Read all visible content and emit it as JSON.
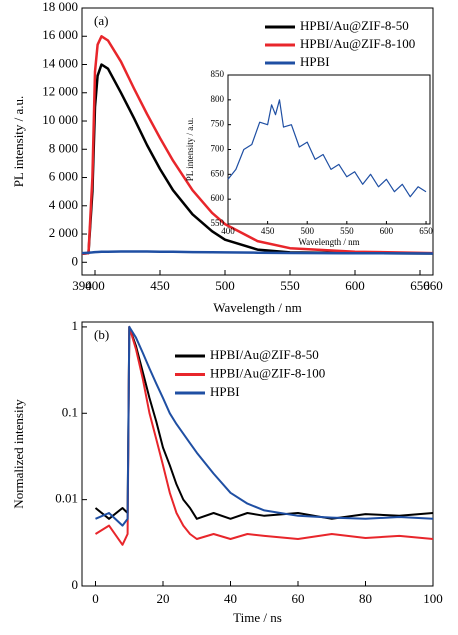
{
  "chart_data": [
    {
      "type": "line",
      "label": "(a)",
      "xlabel": "Wavelength / nm",
      "ylabel": "PL intensity / a.u.",
      "x": [
        390,
        395,
        398,
        400,
        402,
        405,
        410,
        420,
        430,
        440,
        450,
        460,
        475,
        490,
        500,
        525,
        550,
        600,
        660
      ],
      "series": [
        {
          "name": "HPBI/Au@ZIF-8-50",
          "color": "#000000",
          "values": [
            600,
            650,
            5000,
            11000,
            13200,
            14000,
            13700,
            12000,
            10200,
            8300,
            6600,
            5100,
            3400,
            2200,
            1600,
            900,
            700,
            650,
            620
          ]
        },
        {
          "name": "HPBI/Au@ZIF-8-100",
          "color": "#e8262b",
          "values": [
            600,
            650,
            6000,
            13500,
            15400,
            16000,
            15700,
            14200,
            12300,
            10500,
            8800,
            7200,
            5100,
            3500,
            2700,
            1500,
            1000,
            750,
            650
          ]
        },
        {
          "name": "HPBI",
          "color": "#1f4fa3",
          "values": [
            650,
            680,
            700,
            720,
            730,
            740,
            750,
            760,
            760,
            760,
            750,
            740,
            720,
            710,
            700,
            680,
            660,
            640,
            620
          ]
        }
      ],
      "xlim": [
        390,
        660
      ],
      "xticks": [
        390,
        400,
        450,
        500,
        550,
        600,
        650,
        660
      ],
      "ylim": [
        -900,
        18000
      ],
      "yticks": [
        0,
        {
          "value": 2000,
          "label": "2 000"
        },
        {
          "value": 4000,
          "label": "4 000"
        },
        {
          "value": 6000,
          "label": "6 000"
        },
        {
          "value": 8000,
          "label": "8 000"
        },
        {
          "value": 10000,
          "label": "10 000"
        },
        {
          "value": 12000,
          "label": "12 000"
        },
        {
          "value": 14000,
          "label": "14 000"
        },
        {
          "value": 16000,
          "label": "16 000"
        },
        {
          "value": 18000,
          "label": "18 000"
        }
      ],
      "legend": "upper right"
    },
    {
      "type": "line",
      "xlabel": "Wavelength / nm",
      "ylabel": "PL intensity / a.u.",
      "x": [
        400,
        410,
        420,
        430,
        440,
        450,
        455,
        460,
        465,
        470,
        480,
        490,
        500,
        510,
        520,
        530,
        540,
        550,
        560,
        570,
        580,
        590,
        600,
        610,
        620,
        630,
        640,
        650
      ],
      "series": [
        {
          "color": "#1f4fa3",
          "values": [
            640,
            660,
            700,
            710,
            755,
            750,
            790,
            770,
            800,
            745,
            750,
            705,
            715,
            680,
            690,
            660,
            670,
            645,
            655,
            630,
            650,
            625,
            640,
            615,
            630,
            605,
            625,
            615
          ]
        }
      ],
      "xlim": [
        400,
        655
      ],
      "xticks": [
        400,
        450,
        500,
        550,
        600,
        650
      ],
      "ylim": [
        550,
        850
      ],
      "yticks": [
        550,
        600,
        650,
        700,
        750,
        800,
        850
      ]
    },
    {
      "type": "line",
      "label": "(b)",
      "xlabel": "Time / ns",
      "ylabel": "Normalized intensity",
      "yscale": "log",
      "x": [
        0,
        4,
        8,
        9.5,
        10,
        12,
        14,
        16,
        18,
        20,
        22,
        24,
        26,
        28,
        30,
        35,
        40,
        45,
        50,
        60,
        70,
        80,
        90,
        100
      ],
      "series": [
        {
          "name": "HPBI/Au@ZIF-8-50",
          "color": "#000000",
          "values": [
            0.008,
            0.006,
            0.008,
            0.007,
            1,
            0.6,
            0.3,
            0.15,
            0.08,
            0.04,
            0.025,
            0.015,
            0.01,
            0.008,
            0.006,
            0.007,
            0.006,
            0.007,
            0.0065,
            0.007,
            0.006,
            0.0068,
            0.0065,
            0.007
          ]
        },
        {
          "name": "HPBI/Au@ZIF-8-100",
          "color": "#e8262b",
          "values": [
            0.004,
            0.005,
            0.003,
            0.004,
            1,
            0.55,
            0.25,
            0.1,
            0.05,
            0.025,
            0.012,
            0.007,
            0.005,
            0.004,
            0.0035,
            0.004,
            0.0035,
            0.004,
            0.0038,
            0.0035,
            0.004,
            0.0036,
            0.0038,
            0.0035
          ]
        },
        {
          "name": "HPBI",
          "color": "#1f4fa3",
          "values": [
            0.006,
            0.007,
            0.005,
            0.006,
            1,
            0.75,
            0.5,
            0.33,
            0.22,
            0.15,
            0.1,
            0.075,
            0.058,
            0.045,
            0.035,
            0.02,
            0.012,
            0.009,
            0.0075,
            0.0065,
            0.0062,
            0.006,
            0.0063,
            0.006
          ]
        }
      ],
      "xlim": [
        -4,
        100
      ],
      "xticks": [
        0,
        20,
        40,
        60,
        80,
        100
      ],
      "ylim": [
        0.001,
        1.14
      ],
      "yticks": [
        {
          "value": 0.001,
          "label": "0"
        },
        0.01,
        0.1,
        1
      ],
      "legend": "upper center"
    }
  ]
}
